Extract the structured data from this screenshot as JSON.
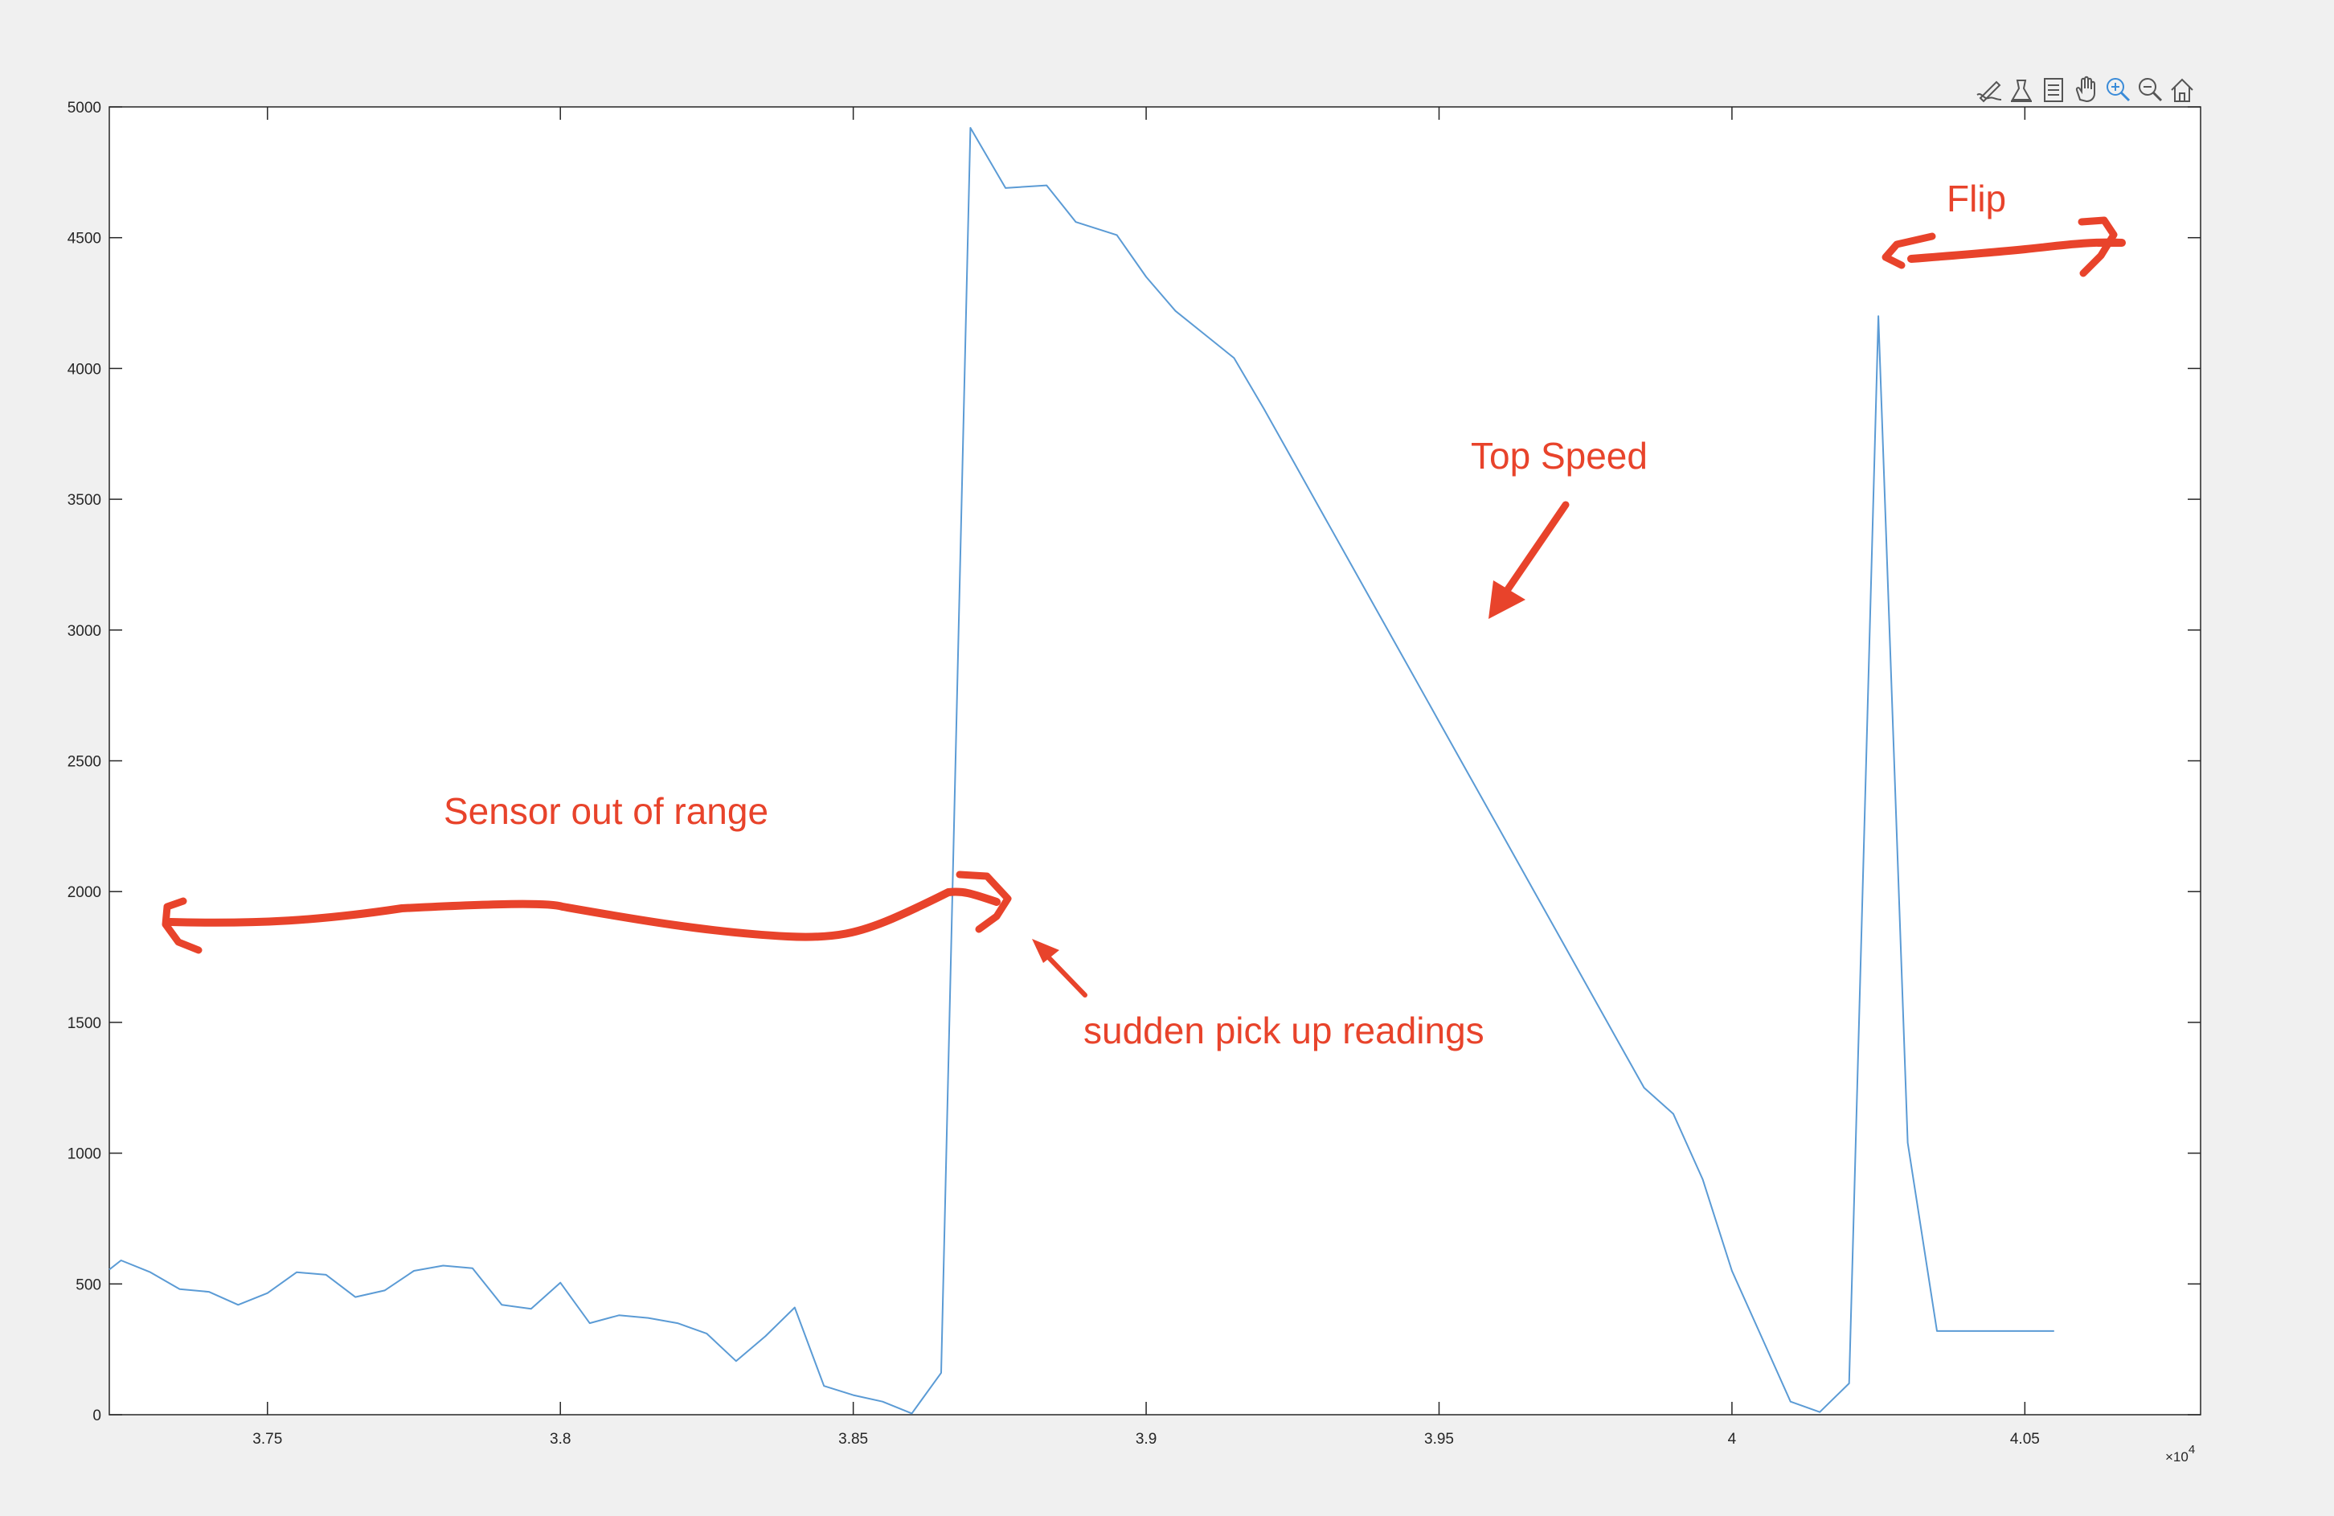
{
  "toolbar": {
    "buttons": [
      {
        "icon": "edit-plot-icon"
      },
      {
        "icon": "data-tips-icon"
      },
      {
        "icon": "brush-icon"
      },
      {
        "icon": "pan-icon"
      },
      {
        "icon": "zoom-in-icon"
      },
      {
        "icon": "zoom-out-icon"
      },
      {
        "icon": "home-icon"
      }
    ],
    "active_color": "#3a8bd8",
    "icon_color": "#555555"
  },
  "chart_data": {
    "type": "line",
    "xlim": [
      37230,
      40800
    ],
    "ylim": [
      0,
      5000
    ],
    "x_ticks": [
      37500,
      38000,
      38500,
      39000,
      39500,
      40000,
      40500
    ],
    "x_tick_labels": [
      "3.75",
      "3.8",
      "3.85",
      "3.9",
      "3.95",
      "4",
      "4.05"
    ],
    "x_exponent": {
      "base": "×10",
      "power": "4"
    },
    "y_ticks": [
      0,
      500,
      1000,
      1500,
      2000,
      2500,
      3000,
      3500,
      4000,
      4500,
      5000
    ],
    "y_tick_labels": [
      "0",
      "500",
      "1000",
      "1500",
      "2000",
      "2500",
      "3000",
      "3500",
      "4000",
      "4500",
      "5000"
    ],
    "grid": false,
    "line_color": "#5b9bd5",
    "series": [
      {
        "x": [
          37230,
          37250,
          37300,
          37350,
          37400,
          37450,
          37500,
          37550,
          37600,
          37650,
          37700,
          37750,
          37800,
          37850,
          37900,
          37950,
          38000,
          38050,
          38100,
          38150,
          38200,
          38250,
          38300,
          38350,
          38400,
          38450,
          38500,
          38550,
          38600,
          38650,
          38700,
          38760,
          38830,
          38880,
          38950,
          39000,
          39050,
          39100,
          39150,
          39200,
          39250,
          39300,
          39350,
          39400,
          39450,
          39500,
          39550,
          39600,
          39650,
          39700,
          39750,
          39800,
          39850,
          39900,
          39950,
          40000,
          40050,
          40100,
          40150,
          40200,
          40250,
          40300,
          40350,
          40400,
          40450,
          40500,
          40550,
          40600,
          40650,
          40700
        ],
        "y": [
          555,
          590,
          545,
          480,
          470,
          420,
          465,
          545,
          535,
          450,
          475,
          550,
          570,
          560,
          420,
          405,
          505,
          350,
          380,
          370,
          350,
          310,
          205,
          300,
          410,
          110,
          75,
          50,
          5,
          160,
          4920,
          4690,
          4700,
          4560,
          4510,
          4350,
          4220,
          4130,
          4040,
          3850,
          3650,
          3450,
          3250,
          3050,
          2850,
          2650,
          2450,
          2250,
          2050,
          1850,
          1650,
          1450,
          1250,
          1150,
          900,
          550,
          300,
          50,
          10,
          120,
          4200,
          1040,
          320,
          320,
          320,
          320,
          320,
          320,
          320,
          320
        ]
      }
    ]
  },
  "annotations": {
    "color": "#e8432b",
    "sensor_label": "Sensor out of range",
    "pickup_label": "sudden pick up readings",
    "top_speed_label": "Top Speed",
    "flip_label": "Flip"
  }
}
